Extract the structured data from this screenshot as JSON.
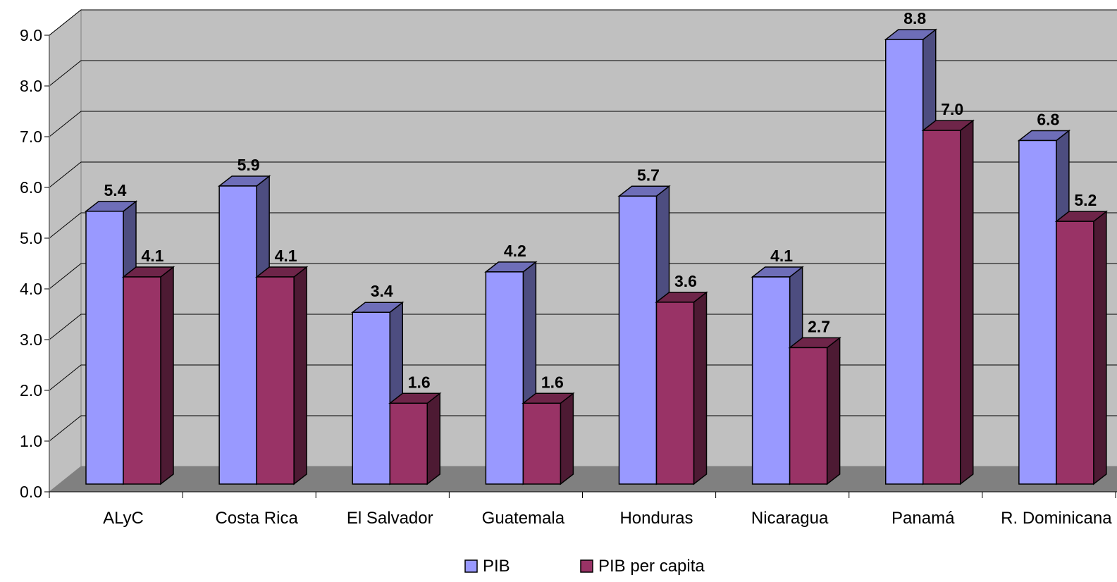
{
  "chart_data": {
    "type": "bar",
    "style": "3d-clustered-column",
    "categories": [
      "ALyC",
      "Costa Rica",
      "El Salvador",
      "Guatemala",
      "Honduras",
      "Nicaragua",
      "Panamá",
      "R. Dominicana"
    ],
    "series": [
      {
        "name": "PIB",
        "values": [
          5.4,
          5.9,
          3.4,
          4.2,
          5.7,
          4.1,
          8.8,
          6.8
        ],
        "color": "#9999ff"
      },
      {
        "name": "PIB per capita",
        "values": [
          4.1,
          4.1,
          1.6,
          1.6,
          3.6,
          2.7,
          7.0,
          5.2
        ],
        "color": "#993366"
      }
    ],
    "y_ticks": [
      "0.0",
      "1.0",
      "2.0",
      "3.0",
      "4.0",
      "5.0",
      "6.0",
      "7.0",
      "8.0",
      "9.0"
    ],
    "ylim": [
      0,
      9
    ],
    "title": "",
    "xlabel": "",
    "ylabel": "",
    "grid": true,
    "legend_position": "bottom",
    "colors": {
      "wall": "#c0c0c0",
      "floor": "#808080",
      "grid": "#000000"
    }
  }
}
